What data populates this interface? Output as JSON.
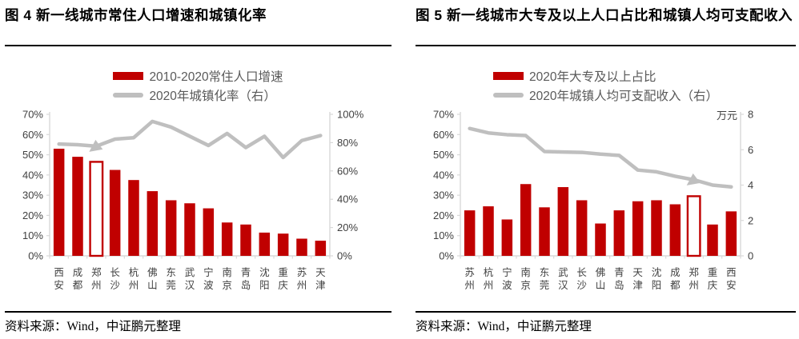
{
  "colors": {
    "bar_red": "#C00000",
    "line_gray": "#BFBFBF",
    "axis_gray": "#D9D9D9",
    "label_gray": "#404040",
    "legend_text": "#595959"
  },
  "figures": [
    {
      "title": "图 4  新一线城市常住人口增速和城镇化率",
      "legend_bar": "2010-2020常住人口增速",
      "legend_line": "2020年城镇化率（右）",
      "source_note": "资料来源：Wind，中证鹏元整理"
    },
    {
      "title": "图 5  新一线城市大专及以上人口占比和城镇人均可支配收入",
      "legend_bar": "2020年大专及以上占比",
      "legend_line": "2020年城镇人均可支配收入（右）",
      "source_note": "资料来源：Wind，中证鹏元整理"
    }
  ],
  "chart_data": [
    {
      "type": "bar",
      "title": "新一线城市常住人口增速和城镇化率",
      "categories": [
        "西安",
        "成都",
        "郑州",
        "长沙",
        "杭州",
        "佛山",
        "东莞",
        "武汉",
        "宁波",
        "南京",
        "青岛",
        "沈阳",
        "重庆",
        "苏州",
        "天津"
      ],
      "series": [
        {
          "name": "2010-2020常住人口增速",
          "kind": "bar",
          "axis": "left",
          "values": [
            53,
            49,
            46.5,
            42.5,
            37.5,
            32,
            27.5,
            26,
            23.5,
            16.5,
            15.5,
            11.5,
            11,
            8.5,
            7.5
          ],
          "color": "#C00000",
          "highlight_index": 2
        },
        {
          "name": "2020年城镇化率（右）",
          "kind": "line",
          "axis": "right",
          "values": [
            79,
            78.5,
            77.5,
            82.5,
            83.5,
            95,
            91,
            84.5,
            78,
            86.5,
            76.5,
            84.5,
            69.5,
            81.5,
            85
          ],
          "color": "#BFBFBF",
          "marker_index": 2
        }
      ],
      "left_axis": {
        "min": 0,
        "max": 70,
        "step": 10,
        "format": "percent"
      },
      "right_axis": {
        "min": 0,
        "max": 100,
        "step": 20,
        "format": "percent"
      },
      "grid": false,
      "legend_position": "top"
    },
    {
      "type": "bar",
      "title": "新一线城市大专及以上人口占比和城镇人均可支配收入",
      "categories": [
        "苏州",
        "杭州",
        "宁波",
        "南京",
        "东莞",
        "武汉",
        "长沙",
        "佛山",
        "青岛",
        "天津",
        "沈阳",
        "成都",
        "郑州",
        "重庆",
        "西安"
      ],
      "series": [
        {
          "name": "2020年大专及以上占比",
          "kind": "bar",
          "axis": "left",
          "values": [
            22.5,
            24.5,
            18,
            35.5,
            24,
            34,
            27.5,
            16,
            22.5,
            27,
            27.5,
            25.5,
            29.5,
            15.5,
            22
          ],
          "color": "#C00000",
          "highlight_index": 12
        },
        {
          "name": "2020年城镇人均可支配收入（右）",
          "kind": "line",
          "axis": "right",
          "values": [
            7.2,
            6.95,
            6.85,
            6.8,
            5.9,
            5.87,
            5.85,
            5.75,
            5.68,
            4.85,
            4.75,
            4.5,
            4.3,
            4.0,
            3.9
          ],
          "color": "#BFBFBF",
          "marker_index": 12
        }
      ],
      "left_axis": {
        "min": 0,
        "max": 70,
        "step": 10,
        "format": "percent"
      },
      "right_axis": {
        "min": 0,
        "max": 8,
        "step": 2,
        "format": "plain",
        "unit": "万元"
      },
      "grid": false,
      "legend_position": "top"
    }
  ]
}
